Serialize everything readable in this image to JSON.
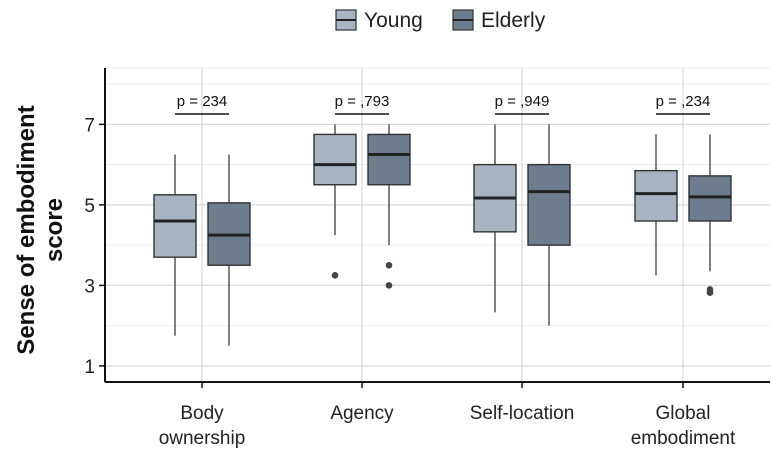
{
  "chart_data": {
    "type": "box",
    "ylabel": "Sense of embodiment score",
    "ylim": [
      0.6,
      8.4
    ],
    "yticks": [
      "1",
      "3",
      "5",
      "7"
    ],
    "grid": true,
    "legend": {
      "placement": "top-center",
      "entries": [
        {
          "name": "Young",
          "color": "#a9b4c2"
        },
        {
          "name": "Elderly",
          "color": "#6d7d8f"
        }
      ]
    },
    "categories": [
      {
        "lines": [
          "Body",
          "ownership"
        ],
        "p_label": "p = 234"
      },
      {
        "lines": [
          "Agency"
        ],
        "p_label": "p = ,793"
      },
      {
        "lines": [
          "Self-location"
        ],
        "p_label": "p = ,949"
      },
      {
        "lines": [
          "Global",
          "embodiment"
        ],
        "p_label": "p = ,234"
      }
    ],
    "series": [
      {
        "name": "Young",
        "color": "#a9b4c2",
        "boxes": [
          {
            "lower_whisker": 1.75,
            "q1": 3.7,
            "median": 4.6,
            "q3": 5.25,
            "upper_whisker": 6.25,
            "outliers": []
          },
          {
            "lower_whisker": 4.25,
            "q1": 5.5,
            "median": 6.0,
            "q3": 6.75,
            "upper_whisker": 7.0,
            "outliers": [
              3.25
            ]
          },
          {
            "lower_whisker": 2.33,
            "q1": 4.33,
            "median": 5.17,
            "q3": 6.0,
            "upper_whisker": 7.0,
            "outliers": []
          },
          {
            "lower_whisker": 3.25,
            "q1": 4.6,
            "median": 5.28,
            "q3": 5.85,
            "upper_whisker": 6.75,
            "outliers": []
          }
        ]
      },
      {
        "name": "Elderly",
        "color": "#6d7d8f",
        "boxes": [
          {
            "lower_whisker": 1.5,
            "q1": 3.5,
            "median": 4.25,
            "q3": 5.05,
            "upper_whisker": 6.25,
            "outliers": []
          },
          {
            "lower_whisker": 4.0,
            "q1": 5.5,
            "median": 6.25,
            "q3": 6.75,
            "upper_whisker": 7.0,
            "outliers": [
              3.5,
              3.0
            ]
          },
          {
            "lower_whisker": 2.0,
            "q1": 4.0,
            "median": 5.33,
            "q3": 6.0,
            "upper_whisker": 7.0,
            "outliers": []
          },
          {
            "lower_whisker": 3.35,
            "q1": 4.6,
            "median": 5.2,
            "q3": 5.72,
            "upper_whisker": 6.75,
            "outliers": [
              2.9,
              2.82
            ]
          }
        ]
      }
    ]
  }
}
